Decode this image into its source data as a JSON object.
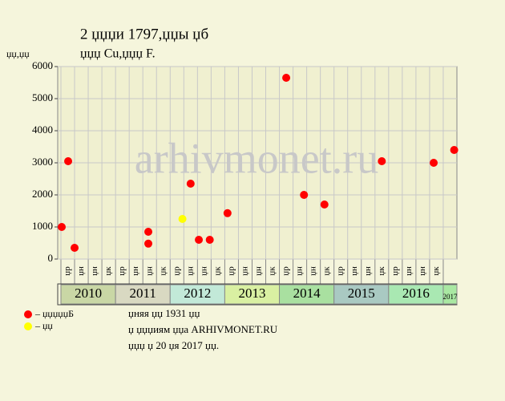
{
  "chart_data": {
    "type": "scatter",
    "title": "2 џџџи 1797,џџы џб",
    "subtitle": "џџџ Cu,џџџ F.",
    "y_label": "џџ,џџ",
    "watermark": "arhivmonet.ru",
    "categories": [
      "џр",
      "џн",
      "џн",
      "џк",
      "џр",
      "џн",
      "џн",
      "џк",
      "џр",
      "џн",
      "џн",
      "џк",
      "џр",
      "џн",
      "џн",
      "џк",
      "џр",
      "џн",
      "џн",
      "џк",
      "џр",
      "џн",
      "џн",
      "џк",
      "џр",
      "џн",
      "џн",
      "џк",
      null
    ],
    "years": [
      "2010",
      "2011",
      "2012",
      "2013",
      "2014",
      "2015",
      "2016",
      "2017"
    ],
    "year_colors": [
      "#c9d7a5",
      "#d9d9c2",
      "#c2e9d8",
      "#d9f0a2",
      "#a9e0a0",
      "#a9c9c2",
      "#a9e8b2",
      "#a9e8a2"
    ],
    "xlim": [
      0,
      29
    ],
    "ylim": [
      0,
      6000
    ],
    "yticks": [
      0,
      1000,
      2000,
      3000,
      4000,
      5000,
      6000
    ],
    "grid": true,
    "series": [
      {
        "name": "– џџџџџБ",
        "color": "#ff0000",
        "x": [
          0.06,
          0.53,
          1.0,
          6.4,
          6.4,
          9.5,
          10.1,
          10.9,
          12.2,
          16.5,
          17.8,
          19.3,
          23.5,
          27.3,
          28.8
        ],
        "values": [
          1000,
          3050,
          350,
          850,
          480,
          2350,
          600,
          600,
          1430,
          5650,
          2000,
          1700,
          3050,
          3000,
          3400
        ]
      },
      {
        "name": "– џџ",
        "color": "#ffff00",
        "x": [
          8.9
        ],
        "values": [
          1250
        ]
      }
    ],
    "notes": [
      "џняя џџ 1931 џџ",
      "џ џџџиям џџа ARHIVMONET.RU",
      "џџџ џ 20 џя 2017 џџ."
    ]
  }
}
